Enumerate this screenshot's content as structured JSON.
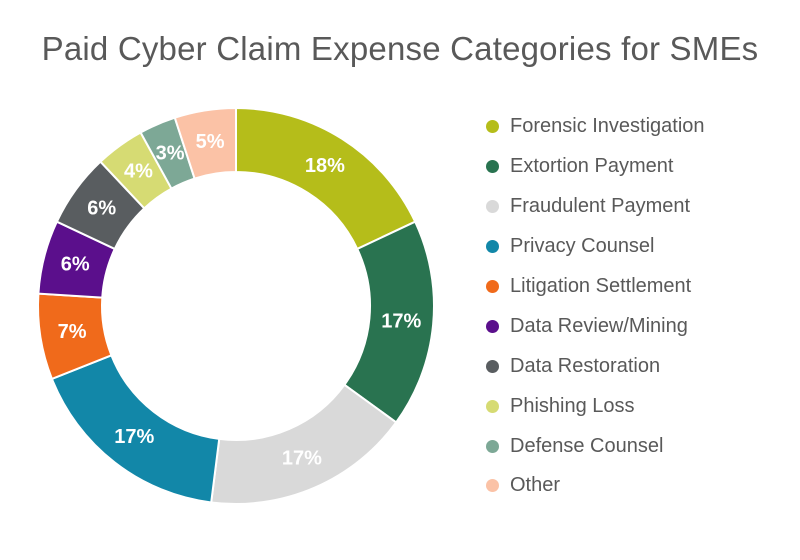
{
  "chart_data": {
    "type": "pie",
    "donut": true,
    "title": "Paid Cyber Claim Expense Categories for SMEs",
    "legend_position": "right",
    "categories": [
      "Forensic Investigation",
      "Extortion Payment",
      "Fraudulent Payment",
      "Privacy Counsel",
      "Litigation Settlement",
      "Data Review/Mining",
      "Data Restoration",
      "Phishing Loss",
      "Defense Counsel",
      "Other"
    ],
    "values": [
      18,
      17,
      17,
      17,
      7,
      6,
      6,
      4,
      3,
      5
    ],
    "labels": [
      "18%",
      "17%",
      "17%",
      "17%",
      "7%",
      "6%",
      "6%",
      "4%",
      "3%",
      "5%"
    ],
    "colors": [
      "#b5bd1a",
      "#297350",
      "#d9d9d9",
      "#1287a8",
      "#f06a1b",
      "#5b0f8c",
      "#595d60",
      "#d6db73",
      "#7da896",
      "#fbc2a6"
    ],
    "label_colors": [
      "#ffffff",
      "#ffffff",
      "#ffffff",
      "#ffffff",
      "#ffffff",
      "#ffffff",
      "#ffffff",
      "#ffffff",
      "#ffffff",
      "#ffffff"
    ]
  }
}
